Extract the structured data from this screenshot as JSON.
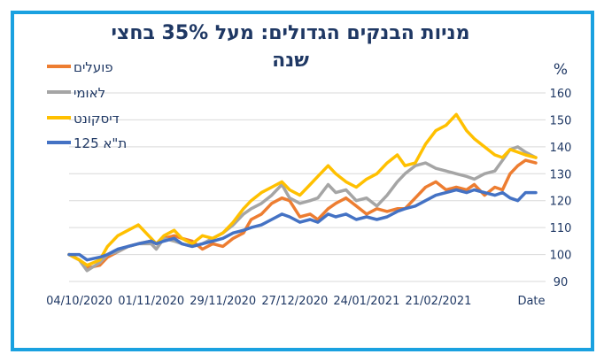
{
  "chart_data": {
    "type": "line",
    "title_line1": "מניות הבנקים הגדולים: מעל 35% בחצי",
    "title_line2": "שנה",
    "y_unit": "%",
    "x_axis_label": "Date",
    "ylim": [
      90,
      160
    ],
    "y_ticks": [
      "90",
      "100",
      "110",
      "120",
      "130",
      "140",
      "150",
      "160"
    ],
    "x_tick_labels": [
      "04/10/2020",
      "01/11/2020",
      "29/11/2020",
      "27/12/2020",
      "24/01/2021",
      "21/02/2021"
    ],
    "x_tick_dates": [
      "2020-10-04",
      "2020-11-01",
      "2020-11-29",
      "2020-12-27",
      "2021-01-24",
      "2021-02-21"
    ],
    "x_range": [
      "2020-09-30",
      "2021-03-31"
    ],
    "grid": true,
    "legend_position": "top-left",
    "series": [
      {
        "name": "פועלים",
        "color": "#ed7d31",
        "points": [
          [
            "2020-09-30",
            100
          ],
          [
            "2020-10-04",
            98
          ],
          [
            "2020-10-07",
            95
          ],
          [
            "2020-10-12",
            96
          ],
          [
            "2020-10-15",
            99
          ],
          [
            "2020-10-19",
            101
          ],
          [
            "2020-10-23",
            103
          ],
          [
            "2020-10-27",
            104
          ],
          [
            "2020-11-01",
            105
          ],
          [
            "2020-11-03",
            104
          ],
          [
            "2020-11-06",
            106
          ],
          [
            "2020-11-10",
            107
          ],
          [
            "2020-11-13",
            106
          ],
          [
            "2020-11-17",
            105
          ],
          [
            "2020-11-21",
            102
          ],
          [
            "2020-11-25",
            104
          ],
          [
            "2020-11-29",
            103
          ],
          [
            "2020-12-03",
            106
          ],
          [
            "2020-12-07",
            108
          ],
          [
            "2020-12-10",
            113
          ],
          [
            "2020-12-14",
            115
          ],
          [
            "2020-12-18",
            119
          ],
          [
            "2020-12-22",
            121
          ],
          [
            "2020-12-25",
            120
          ],
          [
            "2020-12-29",
            114
          ],
          [
            "2021-01-02",
            115
          ],
          [
            "2021-01-05",
            113
          ],
          [
            "2021-01-09",
            117
          ],
          [
            "2021-01-12",
            119
          ],
          [
            "2021-01-16",
            121
          ],
          [
            "2021-01-20",
            118
          ],
          [
            "2021-01-24",
            115
          ],
          [
            "2021-01-28",
            117
          ],
          [
            "2021-02-01",
            116
          ],
          [
            "2021-02-05",
            117
          ],
          [
            "2021-02-08",
            117
          ],
          [
            "2021-02-12",
            121
          ],
          [
            "2021-02-16",
            125
          ],
          [
            "2021-02-20",
            127
          ],
          [
            "2021-02-24",
            124
          ],
          [
            "2021-02-28",
            125
          ],
          [
            "2021-03-04",
            124
          ],
          [
            "2021-03-07",
            126
          ],
          [
            "2021-03-11",
            122
          ],
          [
            "2021-03-15",
            125
          ],
          [
            "2021-03-18",
            124
          ],
          [
            "2021-03-21",
            130
          ],
          [
            "2021-03-24",
            133
          ],
          [
            "2021-03-27",
            135
          ],
          [
            "2021-03-31",
            134
          ]
        ]
      },
      {
        "name": "לאומי",
        "color": "#a5a5a5",
        "points": [
          [
            "2020-09-30",
            100
          ],
          [
            "2020-10-04",
            98
          ],
          [
            "2020-10-07",
            94
          ],
          [
            "2020-10-12",
            97
          ],
          [
            "2020-10-15",
            100
          ],
          [
            "2020-10-19",
            101
          ],
          [
            "2020-10-23",
            103
          ],
          [
            "2020-10-27",
            104
          ],
          [
            "2020-11-01",
            104
          ],
          [
            "2020-11-03",
            102
          ],
          [
            "2020-11-06",
            106
          ],
          [
            "2020-11-10",
            105
          ],
          [
            "2020-11-13",
            104
          ],
          [
            "2020-11-17",
            103
          ],
          [
            "2020-11-21",
            104
          ],
          [
            "2020-11-25",
            106
          ],
          [
            "2020-11-29",
            108
          ],
          [
            "2020-12-03",
            111
          ],
          [
            "2020-12-07",
            115
          ],
          [
            "2020-12-10",
            117
          ],
          [
            "2020-12-14",
            119
          ],
          [
            "2020-12-18",
            122
          ],
          [
            "2020-12-22",
            126
          ],
          [
            "2020-12-25",
            121
          ],
          [
            "2020-12-29",
            119
          ],
          [
            "2021-01-02",
            120
          ],
          [
            "2021-01-05",
            121
          ],
          [
            "2021-01-09",
            126
          ],
          [
            "2021-01-12",
            123
          ],
          [
            "2021-01-16",
            124
          ],
          [
            "2021-01-20",
            120
          ],
          [
            "2021-01-24",
            121
          ],
          [
            "2021-01-28",
            118
          ],
          [
            "2021-02-01",
            122
          ],
          [
            "2021-02-05",
            127
          ],
          [
            "2021-02-08",
            130
          ],
          [
            "2021-02-12",
            133
          ],
          [
            "2021-02-16",
            134
          ],
          [
            "2021-02-20",
            132
          ],
          [
            "2021-02-24",
            131
          ],
          [
            "2021-02-28",
            130
          ],
          [
            "2021-03-04",
            129
          ],
          [
            "2021-03-07",
            128
          ],
          [
            "2021-03-11",
            130
          ],
          [
            "2021-03-15",
            131
          ],
          [
            "2021-03-18",
            135
          ],
          [
            "2021-03-21",
            139
          ],
          [
            "2021-03-24",
            140
          ],
          [
            "2021-03-27",
            138
          ],
          [
            "2021-03-31",
            136
          ]
        ]
      },
      {
        "name": "דיסקונט",
        "color": "#ffc000",
        "points": [
          [
            "2020-09-30",
            100
          ],
          [
            "2020-10-04",
            98
          ],
          [
            "2020-10-07",
            96
          ],
          [
            "2020-10-12",
            98
          ],
          [
            "2020-10-15",
            103
          ],
          [
            "2020-10-19",
            107
          ],
          [
            "2020-10-23",
            109
          ],
          [
            "2020-10-27",
            111
          ],
          [
            "2020-11-01",
            106
          ],
          [
            "2020-11-03",
            104
          ],
          [
            "2020-11-06",
            107
          ],
          [
            "2020-11-10",
            109
          ],
          [
            "2020-11-13",
            106
          ],
          [
            "2020-11-17",
            104
          ],
          [
            "2020-11-21",
            107
          ],
          [
            "2020-11-25",
            106
          ],
          [
            "2020-11-29",
            108
          ],
          [
            "2020-12-03",
            112
          ],
          [
            "2020-12-07",
            117
          ],
          [
            "2020-12-10",
            120
          ],
          [
            "2020-12-14",
            123
          ],
          [
            "2020-12-18",
            125
          ],
          [
            "2020-12-22",
            127
          ],
          [
            "2020-12-25",
            124
          ],
          [
            "2020-12-29",
            122
          ],
          [
            "2021-01-02",
            126
          ],
          [
            "2021-01-05",
            129
          ],
          [
            "2021-01-09",
            133
          ],
          [
            "2021-01-12",
            130
          ],
          [
            "2021-01-16",
            127
          ],
          [
            "2021-01-20",
            125
          ],
          [
            "2021-01-24",
            128
          ],
          [
            "2021-01-28",
            130
          ],
          [
            "2021-02-01",
            134
          ],
          [
            "2021-02-05",
            137
          ],
          [
            "2021-02-08",
            133
          ],
          [
            "2021-02-12",
            134
          ],
          [
            "2021-02-16",
            141
          ],
          [
            "2021-02-20",
            146
          ],
          [
            "2021-02-24",
            148
          ],
          [
            "2021-02-28",
            152
          ],
          [
            "2021-03-04",
            146
          ],
          [
            "2021-03-07",
            143
          ],
          [
            "2021-03-11",
            140
          ],
          [
            "2021-03-15",
            137
          ],
          [
            "2021-03-18",
            136
          ],
          [
            "2021-03-21",
            139
          ],
          [
            "2021-03-24",
            138
          ],
          [
            "2021-03-27",
            137
          ],
          [
            "2021-03-31",
            136
          ]
        ]
      },
      {
        "name": "ת\"א 125",
        "color": "#4472c4",
        "points": [
          [
            "2020-09-30",
            100
          ],
          [
            "2020-10-04",
            100
          ],
          [
            "2020-10-07",
            98
          ],
          [
            "2020-10-12",
            99
          ],
          [
            "2020-10-15",
            100
          ],
          [
            "2020-10-19",
            102
          ],
          [
            "2020-10-23",
            103
          ],
          [
            "2020-10-27",
            104
          ],
          [
            "2020-11-01",
            105
          ],
          [
            "2020-11-03",
            104
          ],
          [
            "2020-11-06",
            105
          ],
          [
            "2020-11-10",
            106
          ],
          [
            "2020-11-13",
            104
          ],
          [
            "2020-11-17",
            103
          ],
          [
            "2020-11-21",
            104
          ],
          [
            "2020-11-25",
            105
          ],
          [
            "2020-11-29",
            106
          ],
          [
            "2020-12-03",
            108
          ],
          [
            "2020-12-07",
            109
          ],
          [
            "2020-12-10",
            110
          ],
          [
            "2020-12-14",
            111
          ],
          [
            "2020-12-18",
            113
          ],
          [
            "2020-12-22",
            115
          ],
          [
            "2020-12-25",
            114
          ],
          [
            "2020-12-29",
            112
          ],
          [
            "2021-01-02",
            113
          ],
          [
            "2021-01-05",
            112
          ],
          [
            "2021-01-09",
            115
          ],
          [
            "2021-01-12",
            114
          ],
          [
            "2021-01-16",
            115
          ],
          [
            "2021-01-20",
            113
          ],
          [
            "2021-01-24",
            114
          ],
          [
            "2021-01-28",
            113
          ],
          [
            "2021-02-01",
            114
          ],
          [
            "2021-02-05",
            116
          ],
          [
            "2021-02-08",
            117
          ],
          [
            "2021-02-12",
            118
          ],
          [
            "2021-02-16",
            120
          ],
          [
            "2021-02-20",
            122
          ],
          [
            "2021-02-24",
            123
          ],
          [
            "2021-02-28",
            124
          ],
          [
            "2021-03-04",
            123
          ],
          [
            "2021-03-07",
            124
          ],
          [
            "2021-03-11",
            123
          ],
          [
            "2021-03-15",
            122
          ],
          [
            "2021-03-18",
            123
          ],
          [
            "2021-03-21",
            121
          ],
          [
            "2021-03-24",
            120
          ],
          [
            "2021-03-27",
            123
          ],
          [
            "2021-03-31",
            123
          ]
        ]
      }
    ]
  }
}
